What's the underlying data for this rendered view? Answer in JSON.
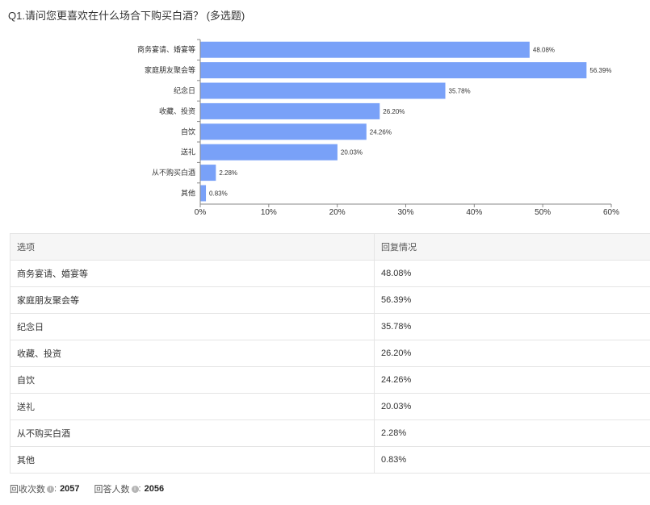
{
  "question": "Q1.请问您更喜欢在什么场合下购买白酒？ (多选题)",
  "chart_data": {
    "type": "bar",
    "orientation": "horizontal",
    "categories": [
      "商务宴请、婚宴等",
      "家庭朋友聚会等",
      "纪念日",
      "收藏、投资",
      "自饮",
      "送礼",
      "从不购买白酒",
      "其他"
    ],
    "values": [
      48.08,
      56.39,
      35.78,
      26.2,
      24.26,
      20.03,
      2.28,
      0.83
    ],
    "value_labels": [
      "48.08%",
      "56.39%",
      "35.78%",
      "26.20%",
      "24.26%",
      "20.03%",
      "2.28%",
      "0.83%"
    ],
    "xlim": [
      0,
      60
    ],
    "xticks": [
      "0%",
      "10%",
      "20%",
      "30%",
      "40%",
      "50%",
      "60%"
    ],
    "bar_color": "#79a1f8",
    "grid": false
  },
  "table": {
    "headers": [
      "选项",
      "回复情况"
    ],
    "rows": [
      [
        "商务宴请、婚宴等",
        "48.08%"
      ],
      [
        "家庭朋友聚会等",
        "56.39%"
      ],
      [
        "纪念日",
        "35.78%"
      ],
      [
        "收藏、投资",
        "26.20%"
      ],
      [
        "自饮",
        "24.26%"
      ],
      [
        "送礼",
        "20.03%"
      ],
      [
        "从不购买白酒",
        "2.28%"
      ],
      [
        "其他",
        "0.83%"
      ]
    ]
  },
  "footer": {
    "responses_label": "回收次数",
    "responses_value": "2057",
    "respondents_label": "回答人数",
    "respondents_value": "2056",
    "info_glyph": "i"
  }
}
